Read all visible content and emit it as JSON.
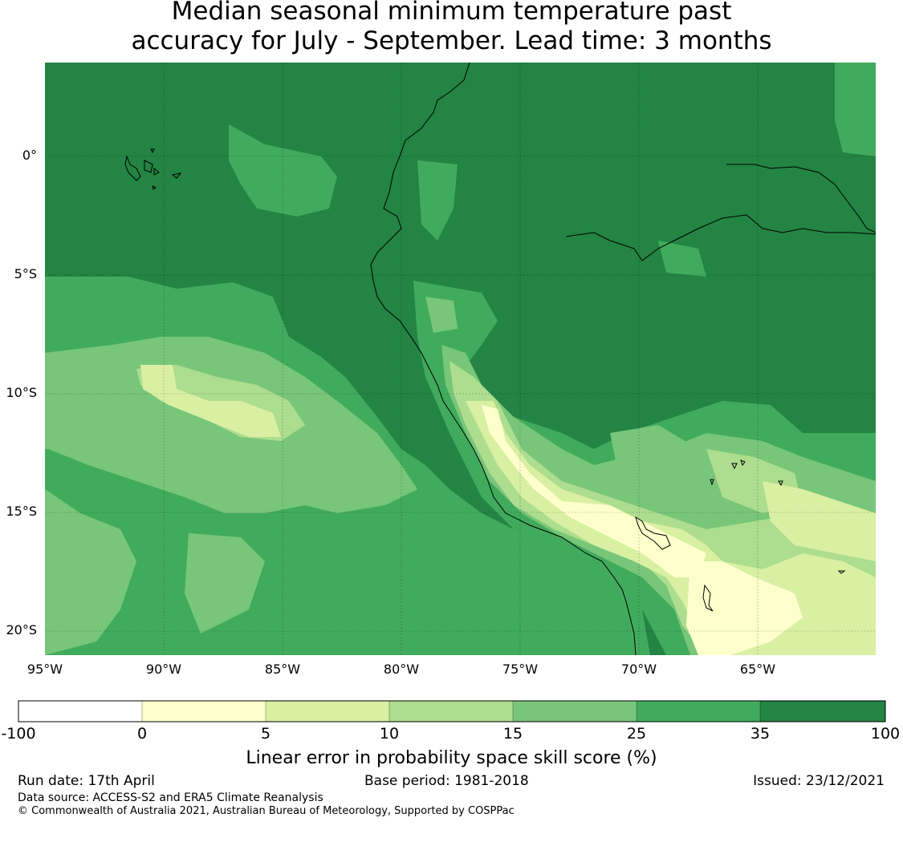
{
  "title_line1": "Median seasonal minimum temperature past",
  "title_line2": "accuracy for July - September. Lead time: 3 months",
  "map": {
    "lat_labels": [
      "0°",
      "5°S",
      "10°S",
      "15°S",
      "20°S"
    ],
    "lon_labels": [
      "95°W",
      "90°W",
      "85°W",
      "80°W",
      "75°W",
      "70°W",
      "65°W"
    ]
  },
  "colorbar": {
    "ticks": [
      "-100",
      "0",
      "5",
      "10",
      "15",
      "25",
      "35",
      "100"
    ],
    "colors": [
      "#ffffff",
      "#ffffcc",
      "#d9f0a3",
      "#addd8e",
      "#78c679",
      "#41ab5d",
      "#238443"
    ],
    "label": "Linear error in probability space skill score (%)"
  },
  "footer": {
    "run_date": "Run date: 17th April",
    "base_period": "Base period: 1981-2018",
    "issued": "Issued: 23/12/2021",
    "data_source": "Data source: ACCESS-S2 and ERA5 Climate Reanalysis",
    "copyright": "© Commonwealth of Australia 2021, Australian Bureau of Meteorology, Supported by COSPPac"
  }
}
